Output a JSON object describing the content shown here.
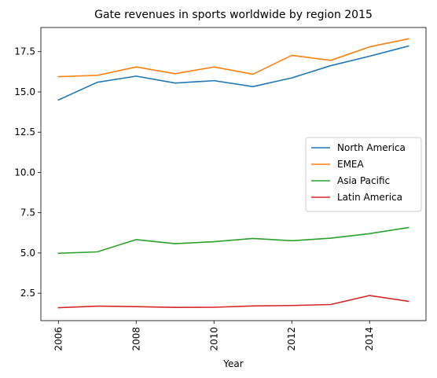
{
  "chart_data": {
    "type": "line",
    "title": "Gate revenues in sports worldwide by region 2015",
    "xlabel": "Year",
    "ylabel": "",
    "x": [
      2006,
      2007,
      2008,
      2009,
      2010,
      2011,
      2012,
      2013,
      2014,
      2015
    ],
    "xlim": [
      2005.55,
      2015.45
    ],
    "ylim": [
      0.8,
      19.0
    ],
    "xticks": [
      "2006",
      "2008",
      "2010",
      "2012",
      "2014"
    ],
    "xtick_rotation": "vertical",
    "yticks": [
      "2.5",
      "5.0",
      "7.5",
      "10.0",
      "12.5",
      "15.0",
      "17.5"
    ],
    "legend_position": "center-right",
    "grid": false,
    "series": [
      {
        "name": "North America",
        "color": "#1f77b4",
        "values": [
          14.5,
          15.6,
          15.98,
          15.55,
          15.7,
          15.33,
          15.87,
          16.63,
          17.22,
          17.85
        ]
      },
      {
        "name": "EMEA",
        "color": "#ff7f0e",
        "values": [
          15.95,
          16.03,
          16.55,
          16.13,
          16.55,
          16.1,
          17.27,
          16.96,
          17.8,
          18.3
        ]
      },
      {
        "name": "Asia Pacific",
        "color": "#2ca02c",
        "values": [
          4.98,
          5.07,
          5.83,
          5.58,
          5.7,
          5.9,
          5.76,
          5.92,
          6.2,
          6.58
        ]
      },
      {
        "name": "Latin America",
        "color": "#d62728",
        "values": [
          1.6,
          1.7,
          1.67,
          1.62,
          1.63,
          1.71,
          1.74,
          1.8,
          2.36,
          2.0
        ]
      }
    ]
  }
}
